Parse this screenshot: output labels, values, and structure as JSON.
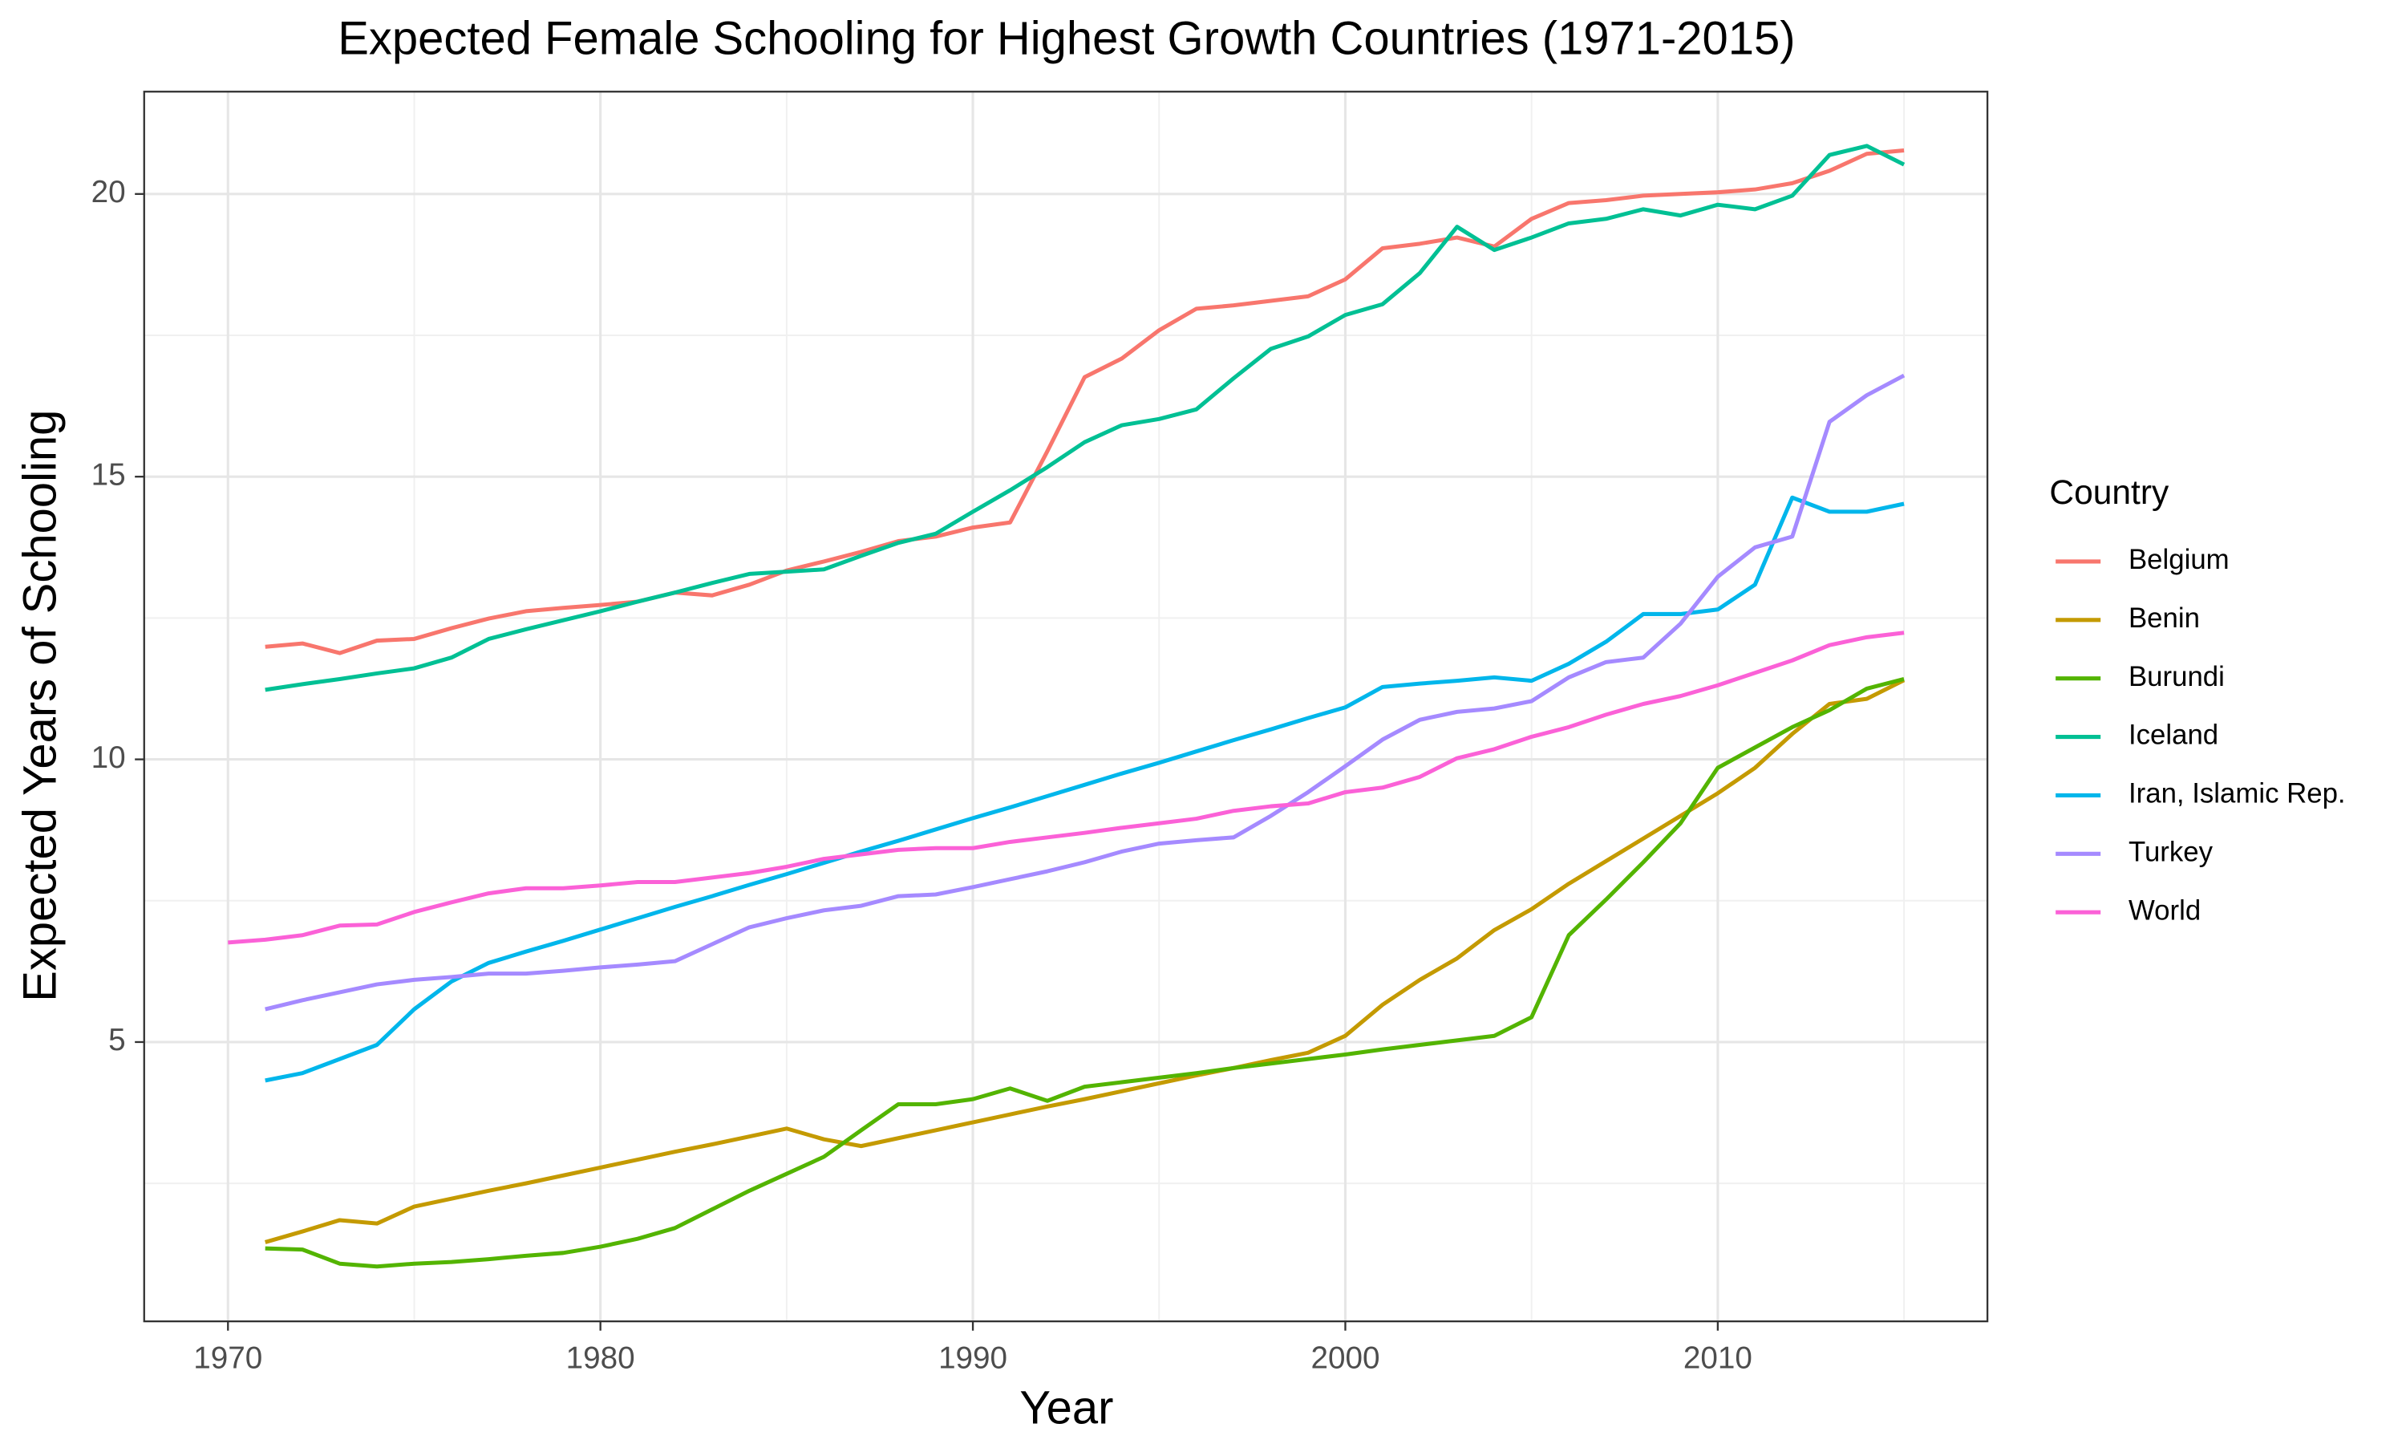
{
  "chart_data": {
    "type": "line",
    "title": "Expected Female Schooling for Highest Growth Countries (1971-2015)",
    "x_label": "Year",
    "y_label": "Expected Years of Schooling",
    "legend_title": "Country",
    "x": [
      1970,
      1971,
      1972,
      1973,
      1974,
      1975,
      1976,
      1977,
      1978,
      1979,
      1980,
      1981,
      1982,
      1983,
      1984,
      1985,
      1986,
      1987,
      1988,
      1989,
      1990,
      1991,
      1992,
      1993,
      1994,
      1995,
      1996,
      1997,
      1998,
      1999,
      2000,
      2001,
      2002,
      2003,
      2004,
      2005,
      2006,
      2007,
      2008,
      2009,
      2010,
      2011,
      2012,
      2013,
      2014,
      2015
    ],
    "xlim": [
      1967.75,
      2017.24
    ],
    "xticks": [
      1970,
      1980,
      1990,
      2000,
      2010
    ],
    "xminor": [
      1975,
      1985,
      1995,
      2005,
      2015
    ],
    "ylim": [
      0.06,
      21.81
    ],
    "yticks": [
      5,
      10,
      15,
      20
    ],
    "yminor": [
      2.5,
      7.5,
      12.5,
      17.5
    ],
    "grid": true,
    "series": [
      {
        "name": "Belgium",
        "color": "#F8766D",
        "values": [
          null,
          11.99,
          12.05,
          11.88,
          12.1,
          12.13,
          12.32,
          12.49,
          12.62,
          12.68,
          12.73,
          12.79,
          12.95,
          12.9,
          13.09,
          13.34,
          13.5,
          13.67,
          13.86,
          13.94,
          14.1,
          14.19,
          15.45,
          16.76,
          17.09,
          17.59,
          17.97,
          18.03,
          18.11,
          18.19,
          18.49,
          19.04,
          19.12,
          19.23,
          19.07,
          19.56,
          19.84,
          19.89,
          19.97,
          20.0,
          20.03,
          20.08,
          20.19,
          20.41,
          20.71,
          20.77
        ]
      },
      {
        "name": "Benin",
        "color": "#C49A00",
        "values": [
          null,
          1.46,
          1.65,
          1.85,
          1.79,
          2.09,
          2.23,
          2.37,
          2.5,
          2.64,
          2.78,
          2.92,
          3.06,
          3.19,
          3.33,
          3.47,
          3.28,
          3.16,
          3.3,
          3.44,
          3.58,
          3.72,
          3.86,
          3.99,
          4.13,
          4.27,
          4.41,
          4.54,
          4.68,
          4.81,
          5.11,
          5.66,
          6.1,
          6.48,
          6.98,
          7.35,
          7.8,
          8.2,
          8.6,
          9.0,
          9.4,
          9.85,
          10.45,
          10.98,
          11.07,
          11.4
        ]
      },
      {
        "name": "Burundi",
        "color": "#53B400",
        "values": [
          null,
          1.35,
          1.33,
          1.08,
          1.03,
          1.08,
          1.11,
          1.16,
          1.22,
          1.27,
          1.38,
          1.52,
          1.71,
          2.04,
          2.37,
          2.67,
          2.97,
          3.44,
          3.9,
          3.9,
          3.99,
          4.18,
          3.96,
          4.21,
          4.29,
          4.37,
          4.45,
          4.54,
          4.62,
          4.7,
          4.78,
          4.87,
          4.95,
          5.03,
          5.11,
          5.44,
          6.89,
          7.52,
          8.18,
          8.87,
          9.85,
          10.21,
          10.57,
          10.87,
          11.25,
          11.42
        ]
      },
      {
        "name": "Iceland",
        "color": "#00C094",
        "values": [
          null,
          11.23,
          11.33,
          11.42,
          11.52,
          11.61,
          11.8,
          12.13,
          12.3,
          12.46,
          12.62,
          12.79,
          12.95,
          13.12,
          13.28,
          13.32,
          13.36,
          13.6,
          13.83,
          13.99,
          14.38,
          14.76,
          15.17,
          15.61,
          15.91,
          16.02,
          16.19,
          16.74,
          17.26,
          17.48,
          17.86,
          18.05,
          18.6,
          19.42,
          19.01,
          19.23,
          19.48,
          19.56,
          19.73,
          19.62,
          19.81,
          19.73,
          19.97,
          20.69,
          20.85,
          20.52
        ]
      },
      {
        "name": "Iran, Islamic Rep.",
        "color": "#00B6EB",
        "values": [
          null,
          4.32,
          4.45,
          4.7,
          4.95,
          5.58,
          6.07,
          6.4,
          6.6,
          6.79,
          6.99,
          7.19,
          7.39,
          7.58,
          7.78,
          7.97,
          8.17,
          8.37,
          8.56,
          8.76,
          8.96,
          9.15,
          9.35,
          9.55,
          9.75,
          9.94,
          10.14,
          10.34,
          10.53,
          10.73,
          10.92,
          11.28,
          11.34,
          11.39,
          11.45,
          11.39,
          11.69,
          12.08,
          12.57,
          12.57,
          12.65,
          13.09,
          14.63,
          14.38,
          14.38,
          14.52
        ]
      },
      {
        "name": "Turkey",
        "color": "#A58AFF",
        "values": [
          null,
          5.58,
          5.74,
          5.88,
          6.02,
          6.1,
          6.15,
          6.21,
          6.21,
          6.26,
          6.32,
          6.37,
          6.43,
          6.73,
          7.03,
          7.19,
          7.33,
          7.41,
          7.58,
          7.61,
          7.74,
          7.88,
          8.02,
          8.18,
          8.37,
          8.51,
          8.57,
          8.62,
          9.0,
          9.42,
          9.88,
          10.35,
          10.7,
          10.84,
          10.9,
          11.03,
          11.45,
          11.72,
          11.8,
          12.4,
          13.23,
          13.75,
          13.94,
          15.97,
          16.44,
          16.79
        ]
      },
      {
        "name": "World",
        "color": "#FB61D7",
        "values": [
          6.76,
          6.81,
          6.89,
          7.06,
          7.08,
          7.3,
          7.47,
          7.63,
          7.72,
          7.72,
          7.77,
          7.83,
          7.83,
          7.91,
          7.99,
          8.1,
          8.24,
          8.32,
          8.4,
          8.43,
          8.43,
          8.54,
          8.62,
          8.7,
          8.79,
          8.87,
          8.95,
          9.09,
          9.17,
          9.22,
          9.42,
          9.5,
          9.69,
          10.02,
          10.18,
          10.4,
          10.57,
          10.79,
          10.98,
          11.12,
          11.31,
          11.53,
          11.75,
          12.02,
          12.16,
          12.24
        ]
      }
    ]
  }
}
